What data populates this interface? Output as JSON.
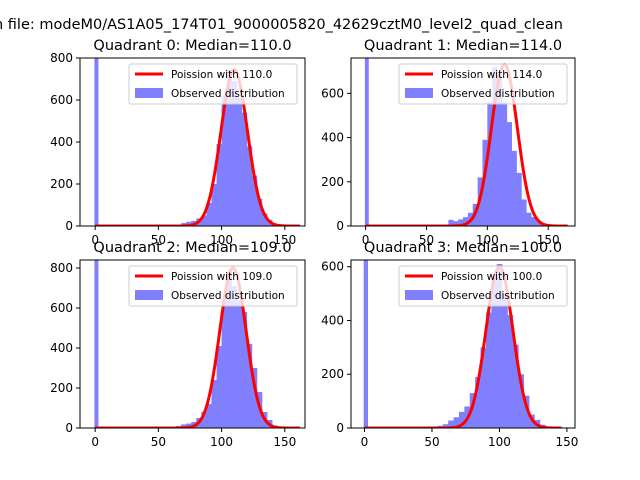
{
  "figure": {
    "suptitle": "n file: modeM0/AS1A05_174T01_9000005820_42629cztM0_level2_quad_clean",
    "colors": {
      "observed": "#8080ff",
      "poisson": "#ff0000",
      "zero_spike": "#8080ff"
    }
  },
  "chart_data": [
    {
      "type": "bar",
      "title": "Quadrant 0: Median=110.0",
      "xlim": [
        -12,
        166
      ],
      "ylim": [
        0,
        800
      ],
      "xticks": [
        0,
        50,
        100,
        150
      ],
      "yticks": [
        0,
        200,
        400,
        600,
        800
      ],
      "zero_bin": {
        "x": 0,
        "value": 800
      },
      "series": [
        {
          "name": "Poission with 110.0",
          "kind": "line",
          "mean": 110.0,
          "peak": 745,
          "x": [
            0,
            162
          ]
        },
        {
          "name": "Observed distribution",
          "kind": "histogram",
          "bin_centers": [
            62,
            66,
            70,
            74,
            78,
            82,
            86,
            90,
            94,
            98,
            102,
            106,
            110,
            114,
            118,
            122,
            126,
            130,
            134,
            138,
            142,
            146,
            150,
            154,
            158
          ],
          "values": [
            2,
            4,
            14,
            20,
            24,
            36,
            50,
            110,
            200,
            390,
            620,
            740,
            690,
            610,
            540,
            380,
            240,
            130,
            60,
            30,
            10,
            6,
            2,
            1,
            0
          ]
        }
      ],
      "legend": "upper right"
    },
    {
      "type": "bar",
      "title": "Quadrant 1: Median=114.0",
      "xlim": [
        -12,
        172
      ],
      "ylim": [
        0,
        760
      ],
      "xticks": [
        0,
        50,
        100,
        150
      ],
      "yticks": [
        0,
        200,
        400,
        600
      ],
      "zero_bin": {
        "x": 0,
        "value": 760
      },
      "series": [
        {
          "name": "Poission with 114.0",
          "kind": "line",
          "mean": 114.0,
          "peak": 730,
          "x": [
            0,
            166
          ]
        },
        {
          "name": "Observed distribution",
          "kind": "histogram",
          "bin_centers": [
            70,
            74,
            78,
            82,
            86,
            90,
            94,
            98,
            102,
            106,
            110,
            114,
            118,
            122,
            126,
            130,
            134,
            138,
            142,
            146,
            150
          ],
          "values": [
            28,
            22,
            30,
            40,
            60,
            100,
            220,
            390,
            560,
            720,
            680,
            560,
            470,
            340,
            240,
            120,
            60,
            40,
            22,
            8,
            2
          ]
        }
      ],
      "legend": "upper right"
    },
    {
      "type": "bar",
      "title": "Quadrant 2: Median=109.0",
      "xlim": [
        -12,
        166
      ],
      "ylim": [
        0,
        840
      ],
      "xticks": [
        0,
        50,
        100,
        150
      ],
      "yticks": [
        0,
        200,
        400,
        600,
        800
      ],
      "zero_bin": {
        "x": 0,
        "value": 840
      },
      "series": [
        {
          "name": "Poission with 109.0",
          "kind": "line",
          "mean": 109.0,
          "peak": 800,
          "x": [
            0,
            162
          ]
        },
        {
          "name": "Observed distribution",
          "kind": "histogram",
          "bin_centers": [
            62,
            66,
            70,
            74,
            78,
            82,
            86,
            90,
            94,
            98,
            102,
            106,
            110,
            114,
            118,
            122,
            126,
            130,
            134,
            138,
            142,
            146,
            150
          ],
          "values": [
            4,
            10,
            18,
            22,
            30,
            50,
            80,
            120,
            240,
            410,
            630,
            780,
            710,
            640,
            580,
            420,
            300,
            180,
            80,
            40,
            12,
            4,
            1
          ]
        }
      ],
      "legend": "upper right"
    },
    {
      "type": "bar",
      "title": "Quadrant 3: Median=100.0",
      "xlim": [
        -10,
        156
      ],
      "ylim": [
        0,
        625
      ],
      "xticks": [
        0,
        50,
        100,
        150
      ],
      "yticks": [
        0,
        200,
        400,
        600
      ],
      "zero_bin": {
        "x": 0,
        "value": 625
      },
      "series": [
        {
          "name": "Poission with 100.0",
          "kind": "line",
          "mean": 100.0,
          "peak": 600,
          "x": [
            0,
            146
          ]
        },
        {
          "name": "Observed distribution",
          "kind": "histogram",
          "bin_centers": [
            52,
            56,
            60,
            64,
            68,
            72,
            76,
            80,
            84,
            88,
            92,
            96,
            100,
            104,
            108,
            112,
            116,
            120,
            124,
            128,
            132,
            136,
            140
          ],
          "values": [
            4,
            8,
            14,
            28,
            40,
            60,
            80,
            130,
            190,
            300,
            430,
            560,
            610,
            500,
            420,
            310,
            200,
            120,
            50,
            30,
            12,
            4,
            1
          ]
        }
      ],
      "legend": "upper right"
    }
  ]
}
